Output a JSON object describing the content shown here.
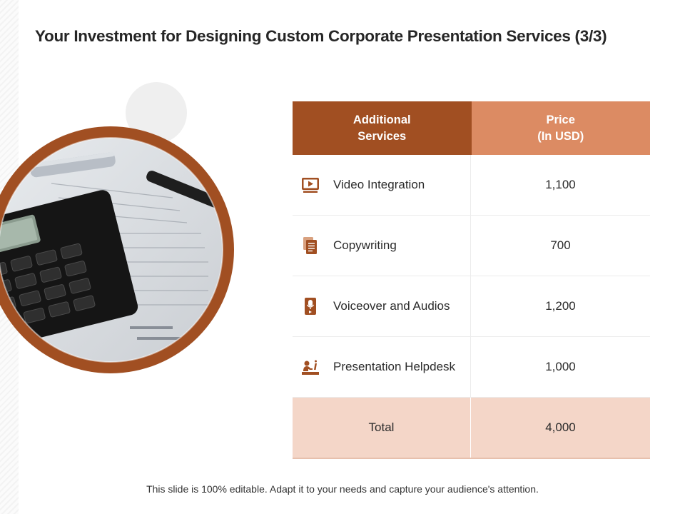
{
  "slide": {
    "title": "Your Investment for Designing Custom Corporate Presentation Services (3/3)",
    "footer": "This slide is 100% editable. Adapt it to your needs and capture your audience's attention."
  },
  "colors": {
    "accent_dark": "#a14f22",
    "accent_light": "#dc8b63",
    "total_fill": "#f4d6c8"
  },
  "table": {
    "header": {
      "service": "Additional\nServices",
      "price": "Price\n(In USD)"
    },
    "rows": [
      {
        "icon": "video-icon",
        "service": "Video Integration",
        "price": "1,100"
      },
      {
        "icon": "documents-icon",
        "service": "Copywriting",
        "price": "700"
      },
      {
        "icon": "microphone-icon",
        "service": "Voiceover and Audios",
        "price": "1,200"
      },
      {
        "icon": "helpdesk-icon",
        "service": "Presentation Helpdesk",
        "price": "1,000"
      }
    ],
    "total": {
      "label": "Total",
      "value": "4,000"
    }
  }
}
